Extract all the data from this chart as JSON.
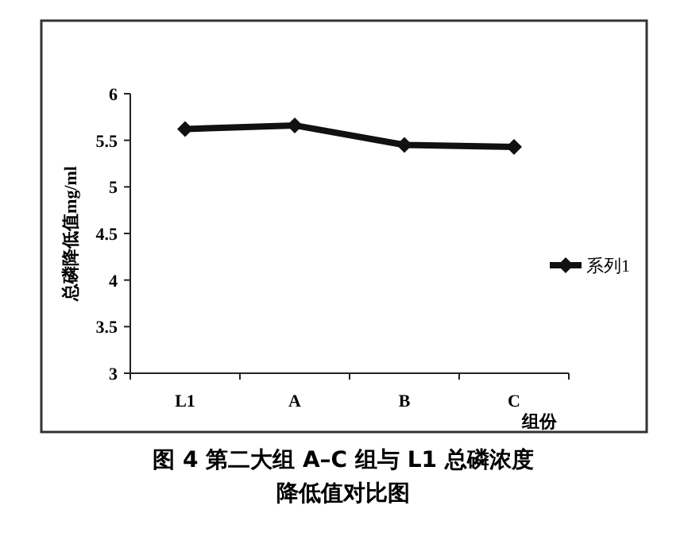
{
  "chart_data": {
    "type": "line",
    "title": "图 4 第二大组 A–C 组与 L1 总磷浓度降低值对比图",
    "xlabel": "组份",
    "ylabel": "总磷降低值mg/ml",
    "categories": [
      "L1",
      "A",
      "B",
      "C"
    ],
    "series": [
      {
        "name": "系列1",
        "color": "#111111",
        "values": [
          5.62,
          5.66,
          5.45,
          5.43
        ]
      }
    ],
    "ylim": [
      3,
      6
    ],
    "yticks": [
      3,
      3.5,
      4,
      4.5,
      5,
      5.5,
      6
    ],
    "marker": "diamond",
    "line_style": "solid",
    "legend": "right",
    "grid": false
  }
}
